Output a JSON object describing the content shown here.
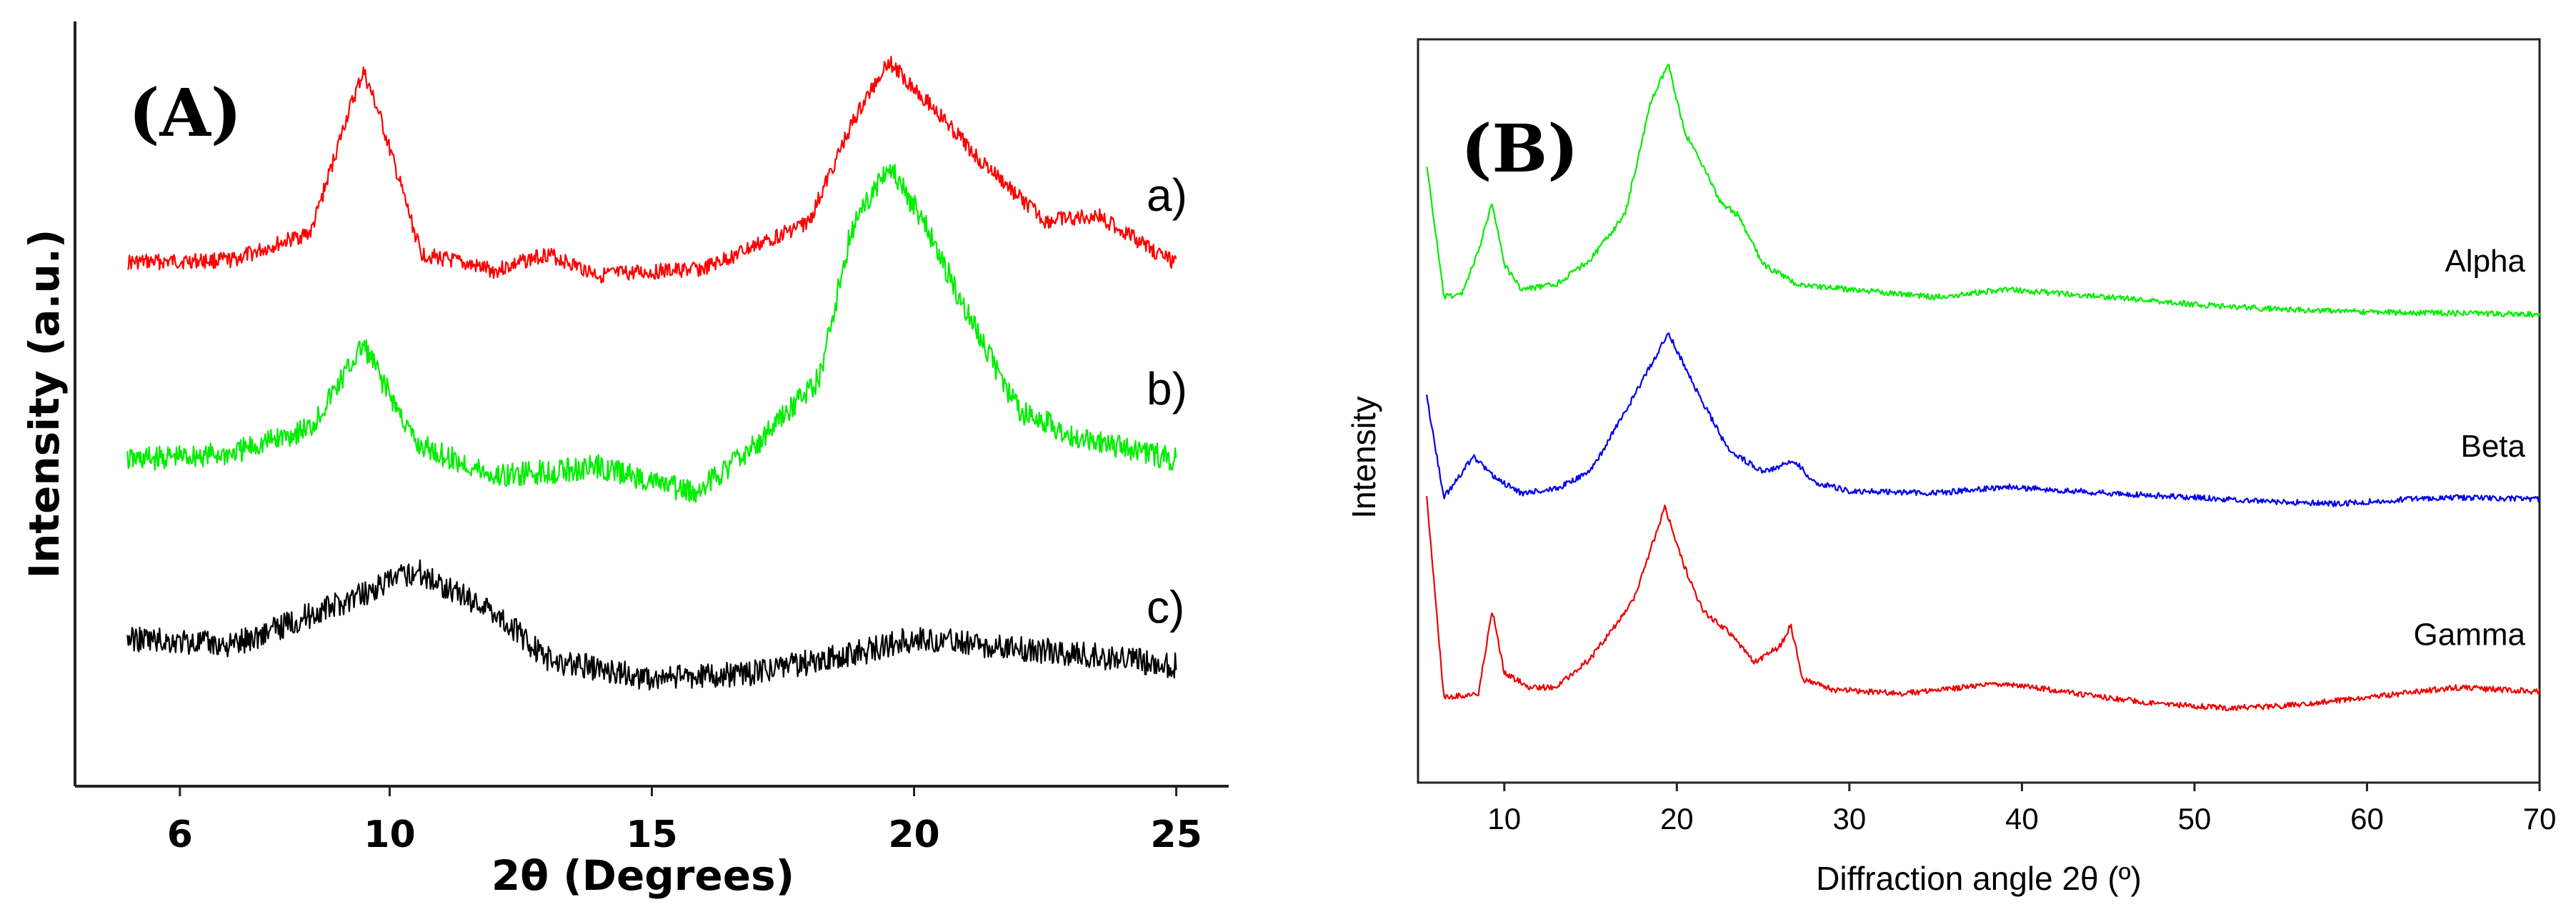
{
  "chart_data": [
    {
      "type": "line",
      "panel": "(A)",
      "xlabel": "2θ (Degrees)",
      "ylabel": "Intensity (a.u.)",
      "xlim": [
        4,
        26
      ],
      "xticks": [
        "6",
        "10",
        "15",
        "20",
        "25"
      ],
      "series": [
        {
          "name": "a)",
          "color": "#ff0000",
          "x": [
            5,
            7,
            8.5,
            9.2,
            9.5,
            9.8,
            10.6,
            12,
            13,
            14,
            16,
            18,
            18.8,
            19.5,
            20.3,
            21.2,
            22.5,
            23.5,
            25
          ],
          "values": [
            0.06,
            0.07,
            0.2,
            0.75,
            0.95,
            0.75,
            0.1,
            0.02,
            0.1,
            0.0,
            0.03,
            0.25,
            0.7,
            1.0,
            0.8,
            0.55,
            0.25,
            0.28,
            0.05
          ]
        },
        {
          "name": "b)",
          "color": "#00ee00",
          "x": [
            5,
            7,
            8.5,
            9.5,
            10.5,
            12,
            14,
            15.8,
            17,
            18.2,
            18.8,
            19.5,
            20.2,
            21,
            22,
            23,
            25
          ],
          "values": [
            0.1,
            0.12,
            0.2,
            0.45,
            0.15,
            0.05,
            0.08,
            0.0,
            0.15,
            0.35,
            0.8,
            1.0,
            0.82,
            0.55,
            0.25,
            0.18,
            0.1
          ]
        },
        {
          "name": "c)",
          "color": "#000000",
          "x": [
            5,
            7,
            9,
            10.5,
            12,
            13,
            15,
            17,
            19,
            20,
            22,
            23.5,
            25
          ],
          "values": [
            0.35,
            0.3,
            0.6,
            0.85,
            0.55,
            0.2,
            0.05,
            0.1,
            0.25,
            0.35,
            0.28,
            0.22,
            0.15
          ]
        }
      ]
    },
    {
      "type": "line",
      "panel": "(B)",
      "xlabel": "Diffraction angle 2θ (º)",
      "ylabel": "Intensity",
      "xlim": [
        5,
        70
      ],
      "xticks": [
        "10",
        "20",
        "30",
        "40",
        "50",
        "60",
        "70"
      ],
      "series": [
        {
          "name": "Alpha",
          "color": "#00ee00",
          "x": [
            5.5,
            6.5,
            7.5,
            8.5,
            9.3,
            10,
            11,
            13,
            15,
            17,
            18.5,
            19.5,
            20.5,
            21.5,
            22.5,
            23.5,
            25,
            27,
            30,
            35,
            39,
            45,
            50,
            55,
            60,
            70
          ],
          "values": [
            0.6,
            0.07,
            0.08,
            0.25,
            0.45,
            0.2,
            0.1,
            0.12,
            0.22,
            0.4,
            0.85,
            1.0,
            0.72,
            0.6,
            0.45,
            0.4,
            0.2,
            0.12,
            0.1,
            0.07,
            0.1,
            0.07,
            0.04,
            0.02,
            0.01,
            0.0
          ]
        },
        {
          "name": "Beta",
          "color": "#0000ee",
          "x": [
            5.5,
            6.5,
            8.2,
            9.5,
            11,
            13,
            15,
            17.5,
            19.5,
            21,
            23,
            25,
            26.8,
            28,
            30,
            35,
            39,
            45,
            50,
            55,
            58,
            62,
            66,
            70
          ],
          "values": [
            0.5,
            0.03,
            0.22,
            0.12,
            0.05,
            0.07,
            0.15,
            0.5,
            0.8,
            0.55,
            0.25,
            0.15,
            0.2,
            0.1,
            0.06,
            0.05,
            0.08,
            0.05,
            0.03,
            0.01,
            0.0,
            0.02,
            0.03,
            0.02
          ]
        },
        {
          "name": "Gamma",
          "color": "#ee0000",
          "x": [
            5.5,
            6.5,
            8.5,
            9.3,
            10,
            11.5,
            13,
            15,
            17.5,
            19.3,
            20.5,
            21.5,
            23,
            24.5,
            26,
            26.6,
            27.3,
            29,
            33,
            39,
            44,
            48,
            52,
            55,
            60,
            65,
            70
          ],
          "values": [
            1.0,
            0.03,
            0.05,
            0.45,
            0.15,
            0.08,
            0.08,
            0.22,
            0.5,
            0.95,
            0.65,
            0.45,
            0.35,
            0.2,
            0.28,
            0.38,
            0.12,
            0.07,
            0.05,
            0.1,
            0.04,
            0.0,
            -0.02,
            -0.01,
            0.03,
            0.08,
            0.06
          ]
        }
      ]
    }
  ]
}
